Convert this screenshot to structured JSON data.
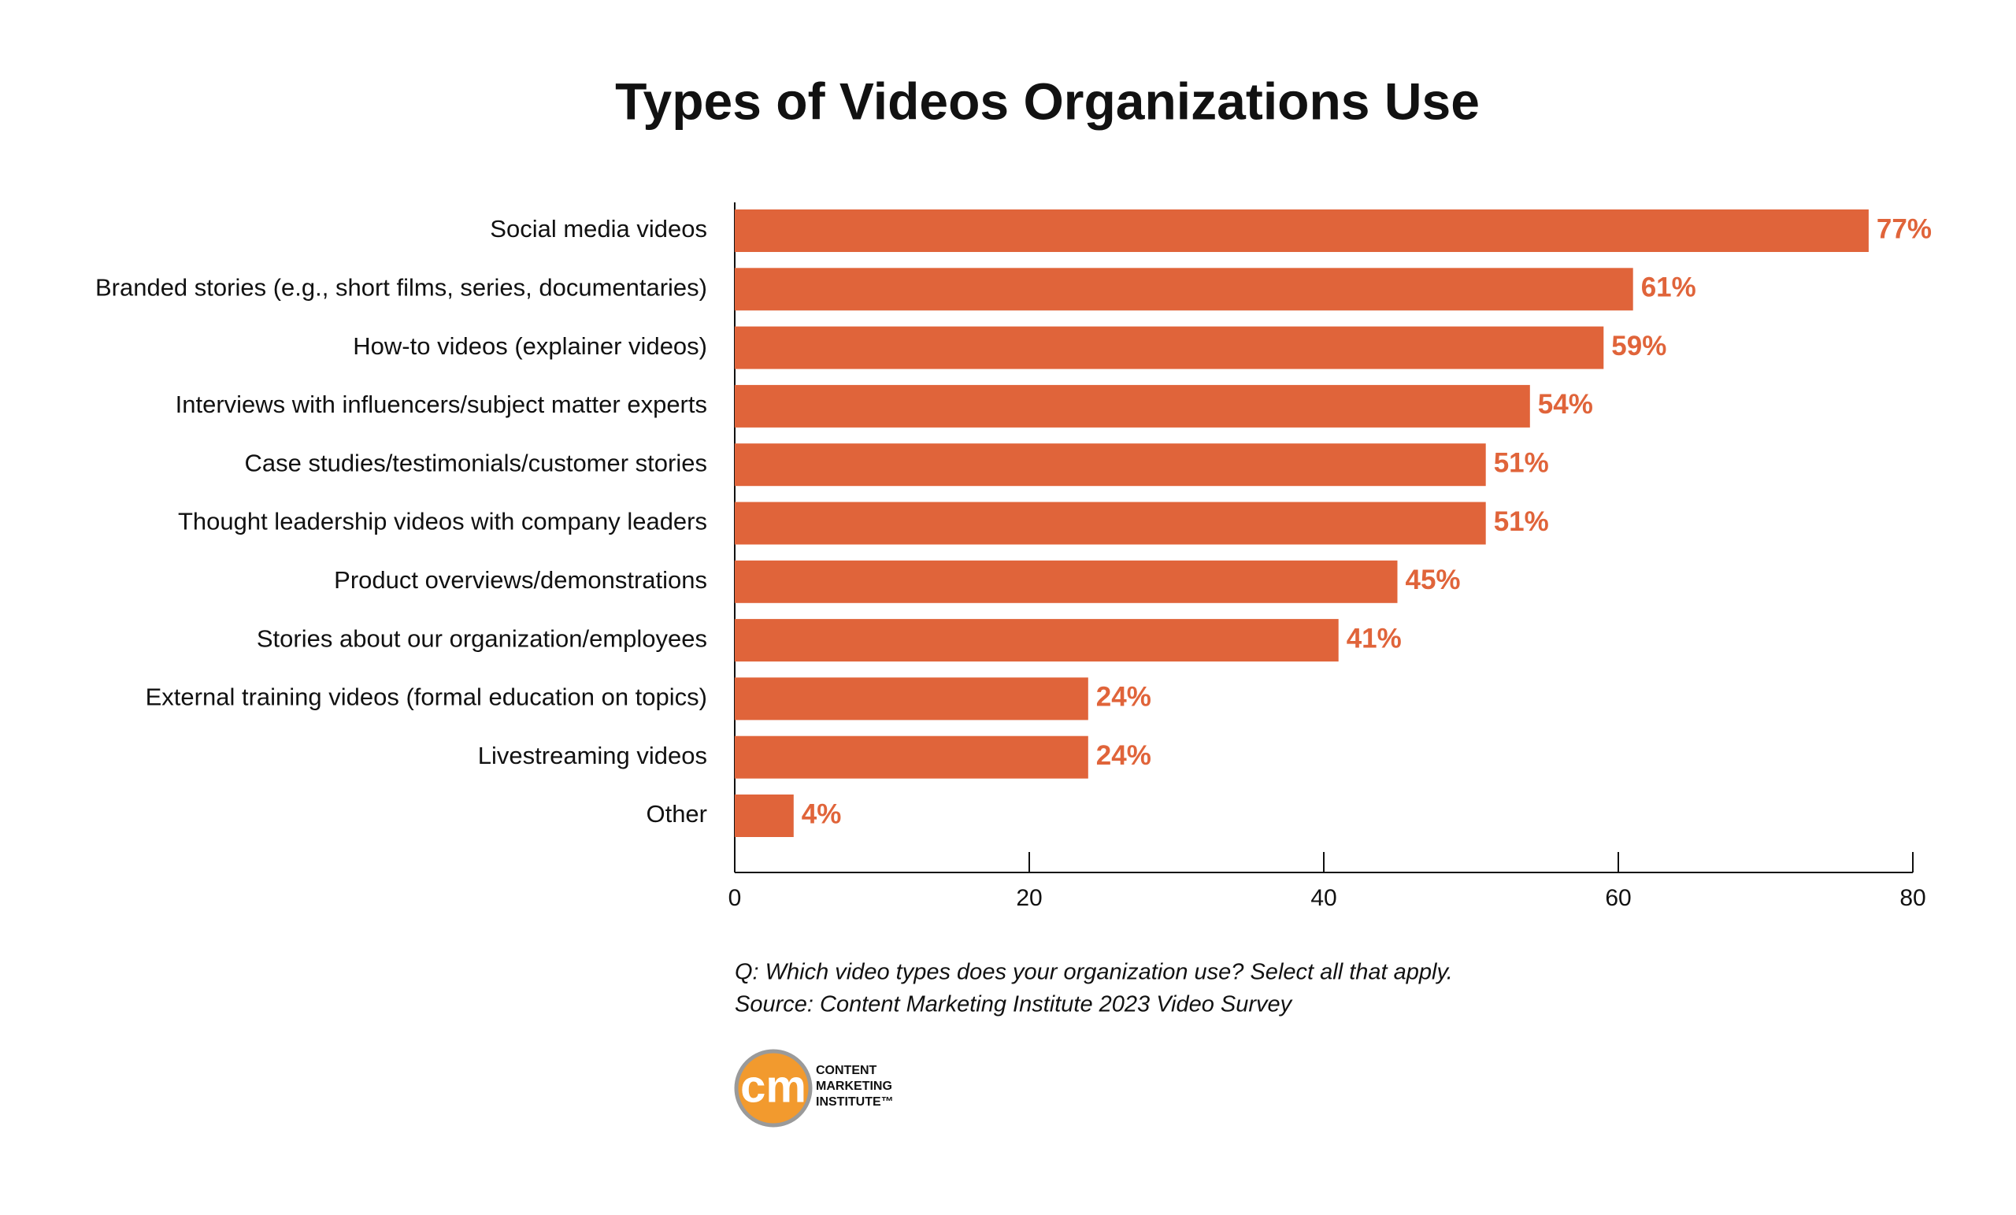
{
  "chart_data": {
    "type": "hbar",
    "title": "Types of Videos Organizations Use",
    "categories": [
      "Social media videos",
      "Branded stories (e.g., short films, series, documentaries)",
      "How-to videos (explainer videos)",
      "Interviews with influencers/subject matter experts",
      "Case studies/testimonials/customer stories",
      "Thought leadership videos with company leaders",
      "Product overviews/demonstrations",
      "Stories about our organization/employees",
      "External training videos (formal education on topics)",
      "Livestreaming videos",
      "Other"
    ],
    "values": [
      77,
      61,
      59,
      54,
      51,
      51,
      45,
      41,
      24,
      24,
      4
    ],
    "value_labels": [
      "77%",
      "61%",
      "59%",
      "54%",
      "51%",
      "51%",
      "45%",
      "41%",
      "24%",
      "24%",
      "4%"
    ],
    "color": "#e0643a",
    "xlim": [
      0,
      80
    ],
    "xticks": [
      0,
      20,
      40,
      60,
      80
    ],
    "notes": [
      "Q: Which video types does your organization use? Select all that apply.",
      "Source: Content Marketing Institute 2023 Video Survey"
    ],
    "logo": {
      "mark": "cm",
      "lines": [
        "CONTENT",
        "MARKETING",
        "INSTITUTE™"
      ]
    }
  }
}
